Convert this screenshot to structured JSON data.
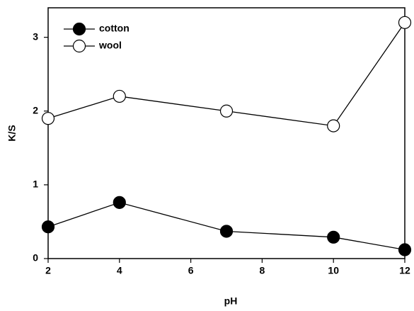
{
  "chart_data": {
    "type": "line",
    "x_label": "pH",
    "y_label": "K/S",
    "x": [
      2,
      4,
      7,
      10,
      12
    ],
    "series": [
      {
        "name": "cotton",
        "color": "#000000",
        "values": [
          0.43,
          0.76,
          0.37,
          0.29,
          0.12
        ]
      },
      {
        "name": "wool",
        "color": "#ffffff",
        "values": [
          1.9,
          2.2,
          2.0,
          1.8,
          3.2
        ]
      }
    ],
    "xlim": [
      2,
      12
    ],
    "xticks": [
      2,
      4,
      6,
      8,
      10,
      12
    ],
    "ylim": [
      0,
      3.4
    ],
    "yticks": [
      0,
      1,
      2,
      3
    ],
    "legend": "upper left",
    "grid": false
  }
}
